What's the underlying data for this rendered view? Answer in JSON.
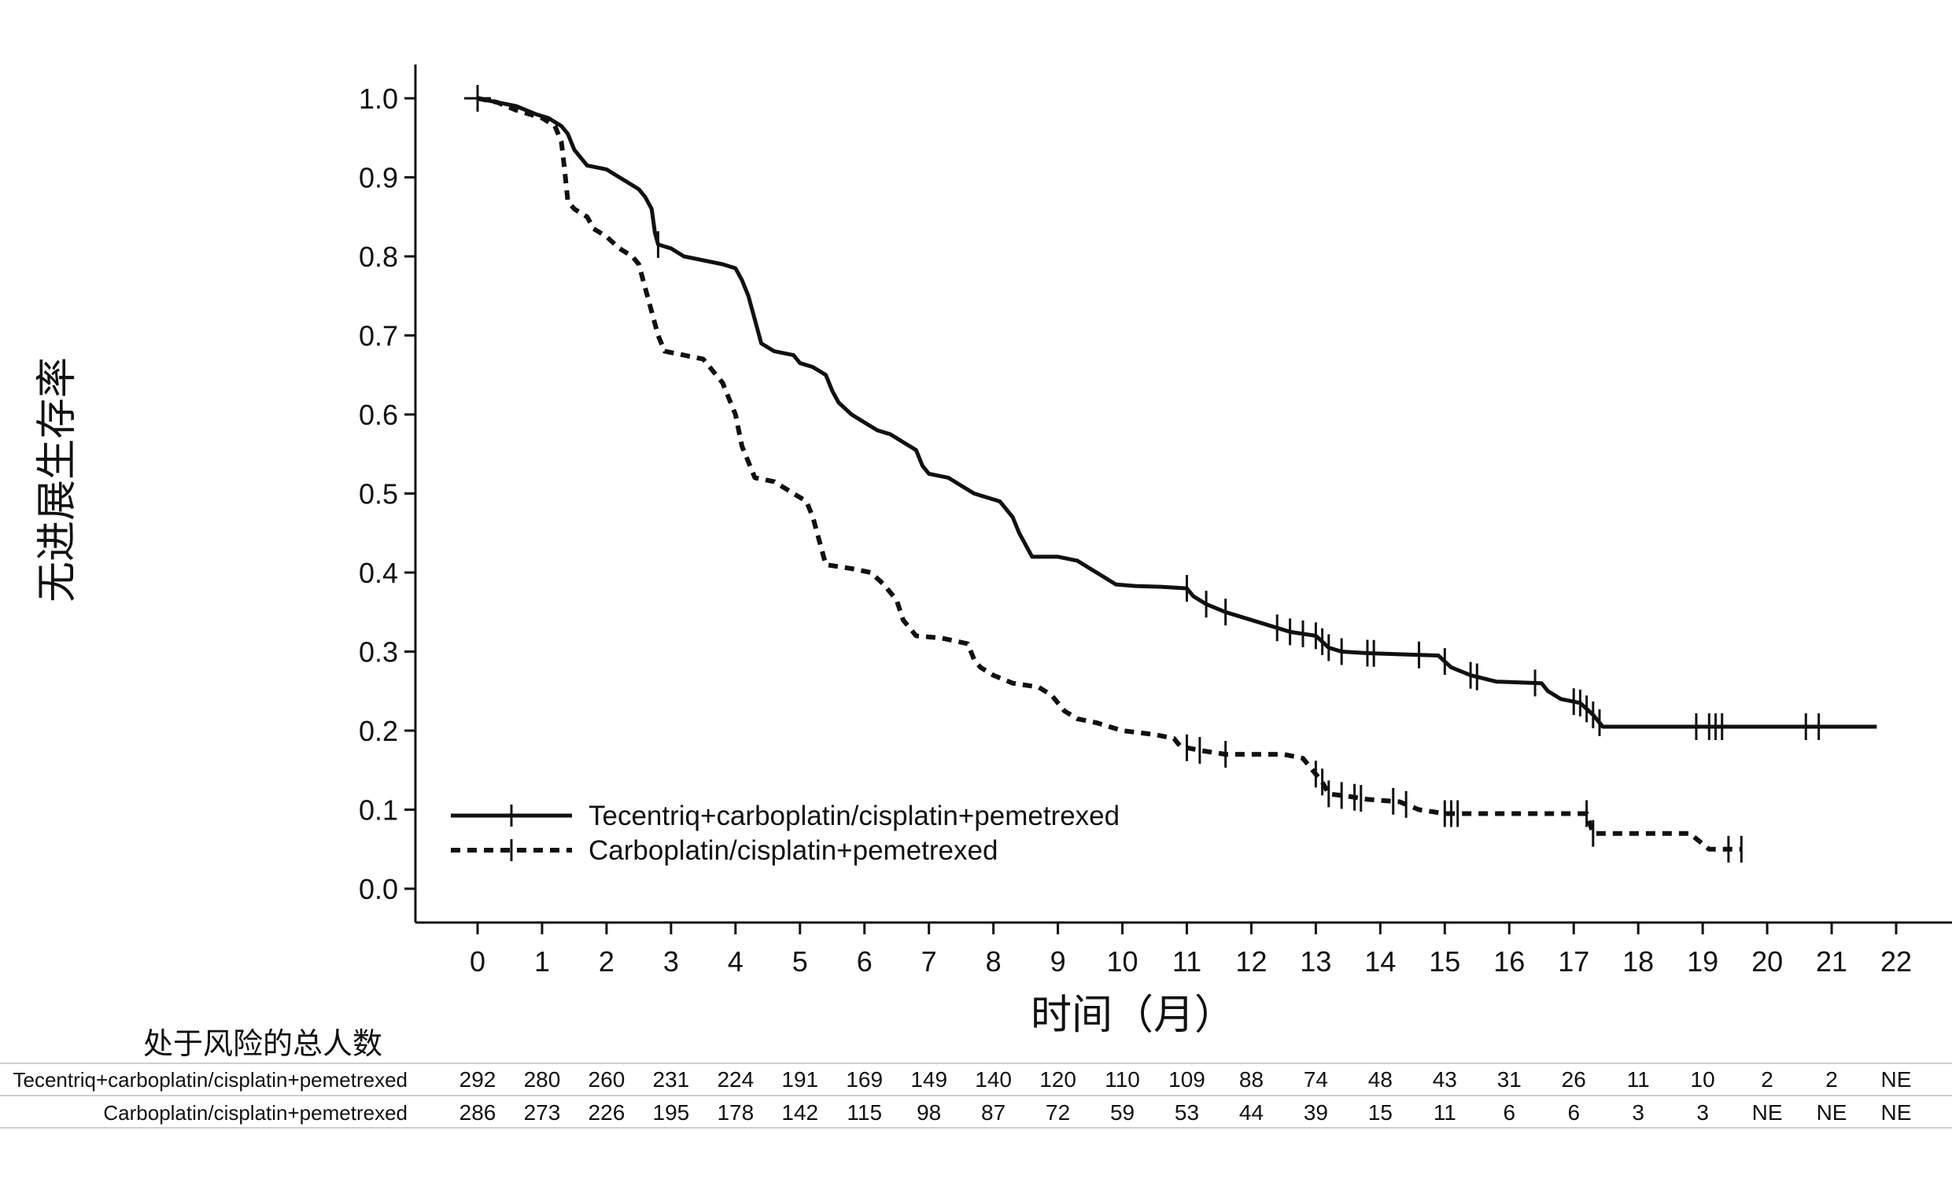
{
  "chart_data": {
    "type": "line",
    "title": "",
    "xlabel": "时间（月）",
    "ylabel": "无进展生存率",
    "xlim": [
      0,
      22
    ],
    "ylim": [
      0,
      1
    ],
    "x_ticks": [
      0,
      1,
      2,
      3,
      4,
      5,
      6,
      7,
      8,
      9,
      10,
      11,
      12,
      13,
      14,
      15,
      16,
      17,
      18,
      19,
      20,
      21,
      22
    ],
    "y_ticks": [
      "0.0",
      "0.1",
      "0.2",
      "0.3",
      "0.4",
      "0.5",
      "0.6",
      "0.7",
      "0.8",
      "0.9",
      "1.0"
    ],
    "grid": false,
    "legend_position": "bottom-left",
    "series": [
      {
        "name": "Tecentriq+carboplatin/cisplatin+pemetrexed",
        "style": "solid",
        "color": "#111111",
        "points": [
          [
            0,
            1.0
          ],
          [
            0.3,
            0.995
          ],
          [
            0.6,
            0.99
          ],
          [
            0.9,
            0.98
          ],
          [
            1.1,
            0.975
          ],
          [
            1.3,
            0.965
          ],
          [
            1.4,
            0.955
          ],
          [
            1.5,
            0.935
          ],
          [
            1.6,
            0.925
          ],
          [
            1.7,
            0.915
          ],
          [
            2.0,
            0.91
          ],
          [
            2.2,
            0.9
          ],
          [
            2.4,
            0.89
          ],
          [
            2.5,
            0.885
          ],
          [
            2.6,
            0.875
          ],
          [
            2.7,
            0.86
          ],
          [
            2.75,
            0.83
          ],
          [
            2.8,
            0.815
          ],
          [
            3.0,
            0.81
          ],
          [
            3.2,
            0.8
          ],
          [
            3.5,
            0.795
          ],
          [
            3.8,
            0.79
          ],
          [
            4.0,
            0.785
          ],
          [
            4.1,
            0.77
          ],
          [
            4.2,
            0.75
          ],
          [
            4.3,
            0.72
          ],
          [
            4.4,
            0.69
          ],
          [
            4.6,
            0.68
          ],
          [
            4.9,
            0.675
          ],
          [
            5.0,
            0.665
          ],
          [
            5.2,
            0.66
          ],
          [
            5.4,
            0.65
          ],
          [
            5.5,
            0.63
          ],
          [
            5.6,
            0.615
          ],
          [
            5.8,
            0.6
          ],
          [
            6.0,
            0.59
          ],
          [
            6.2,
            0.58
          ],
          [
            6.4,
            0.575
          ],
          [
            6.6,
            0.565
          ],
          [
            6.8,
            0.555
          ],
          [
            6.9,
            0.535
          ],
          [
            7.0,
            0.525
          ],
          [
            7.3,
            0.52
          ],
          [
            7.5,
            0.51
          ],
          [
            7.7,
            0.5
          ],
          [
            7.9,
            0.495
          ],
          [
            8.1,
            0.49
          ],
          [
            8.3,
            0.47
          ],
          [
            8.4,
            0.45
          ],
          [
            8.5,
            0.435
          ],
          [
            8.6,
            0.42
          ],
          [
            9.0,
            0.42
          ],
          [
            9.3,
            0.415
          ],
          [
            9.5,
            0.405
          ],
          [
            9.7,
            0.395
          ],
          [
            9.9,
            0.385
          ],
          [
            10.2,
            0.383
          ],
          [
            10.6,
            0.382
          ],
          [
            11.0,
            0.38
          ],
          [
            11.1,
            0.37
          ],
          [
            11.3,
            0.36
          ],
          [
            11.6,
            0.35
          ],
          [
            11.8,
            0.345
          ],
          [
            12.2,
            0.335
          ],
          [
            12.6,
            0.325
          ],
          [
            13.0,
            0.32
          ],
          [
            13.2,
            0.305
          ],
          [
            13.4,
            0.3
          ],
          [
            13.8,
            0.298
          ],
          [
            14.9,
            0.295
          ],
          [
            15.1,
            0.28
          ],
          [
            15.4,
            0.27
          ],
          [
            15.8,
            0.262
          ],
          [
            16.5,
            0.26
          ],
          [
            16.6,
            0.25
          ],
          [
            16.8,
            0.24
          ],
          [
            17.1,
            0.235
          ],
          [
            17.3,
            0.22
          ],
          [
            17.4,
            0.21
          ],
          [
            17.45,
            0.205
          ],
          [
            20.0,
            0.205
          ],
          [
            21.7,
            0.205
          ]
        ],
        "censor_x": [
          0,
          2.8,
          11.0,
          11.3,
          11.6,
          12.4,
          12.6,
          12.8,
          13.0,
          13.1,
          13.2,
          13.4,
          13.8,
          13.9,
          14.6,
          15.0,
          15.4,
          15.5,
          16.4,
          17.0,
          17.1,
          17.2,
          17.3,
          17.4,
          18.9,
          19.1,
          19.2,
          19.3,
          20.6,
          20.8
        ]
      },
      {
        "name": "Carboplatin/cisplatin+pemetrexed",
        "style": "dashed",
        "color": "#111111",
        "points": [
          [
            0,
            1.0
          ],
          [
            0.3,
            0.995
          ],
          [
            0.6,
            0.985
          ],
          [
            1.0,
            0.975
          ],
          [
            1.2,
            0.965
          ],
          [
            1.3,
            0.945
          ],
          [
            1.35,
            0.91
          ],
          [
            1.4,
            0.87
          ],
          [
            1.5,
            0.86
          ],
          [
            1.7,
            0.85
          ],
          [
            1.8,
            0.835
          ],
          [
            2.0,
            0.825
          ],
          [
            2.2,
            0.81
          ],
          [
            2.4,
            0.8
          ],
          [
            2.5,
            0.79
          ],
          [
            2.6,
            0.76
          ],
          [
            2.7,
            0.73
          ],
          [
            2.8,
            0.7
          ],
          [
            2.9,
            0.68
          ],
          [
            3.2,
            0.675
          ],
          [
            3.5,
            0.67
          ],
          [
            3.8,
            0.64
          ],
          [
            4.0,
            0.6
          ],
          [
            4.1,
            0.56
          ],
          [
            4.2,
            0.54
          ],
          [
            4.3,
            0.52
          ],
          [
            4.6,
            0.515
          ],
          [
            4.9,
            0.5
          ],
          [
            5.1,
            0.49
          ],
          [
            5.2,
            0.47
          ],
          [
            5.3,
            0.44
          ],
          [
            5.4,
            0.41
          ],
          [
            5.8,
            0.405
          ],
          [
            6.1,
            0.4
          ],
          [
            6.3,
            0.385
          ],
          [
            6.5,
            0.365
          ],
          [
            6.6,
            0.34
          ],
          [
            6.8,
            0.32
          ],
          [
            7.2,
            0.317
          ],
          [
            7.6,
            0.31
          ],
          [
            7.7,
            0.29
          ],
          [
            7.8,
            0.28
          ],
          [
            8.0,
            0.27
          ],
          [
            8.3,
            0.26
          ],
          [
            8.7,
            0.255
          ],
          [
            8.9,
            0.245
          ],
          [
            9.0,
            0.235
          ],
          [
            9.1,
            0.225
          ],
          [
            9.3,
            0.215
          ],
          [
            9.6,
            0.21
          ],
          [
            10.0,
            0.2
          ],
          [
            10.5,
            0.195
          ],
          [
            10.8,
            0.19
          ],
          [
            10.9,
            0.18
          ],
          [
            11.2,
            0.175
          ],
          [
            11.6,
            0.17
          ],
          [
            12.5,
            0.17
          ],
          [
            12.8,
            0.165
          ],
          [
            12.9,
            0.155
          ],
          [
            13.0,
            0.145
          ],
          [
            13.1,
            0.135
          ],
          [
            13.2,
            0.12
          ],
          [
            13.5,
            0.117
          ],
          [
            13.8,
            0.113
          ],
          [
            14.3,
            0.11
          ],
          [
            14.6,
            0.1
          ],
          [
            15.0,
            0.095
          ],
          [
            16.2,
            0.095
          ],
          [
            17.2,
            0.095
          ],
          [
            17.3,
            0.07
          ],
          [
            18.8,
            0.07
          ],
          [
            19.1,
            0.05
          ],
          [
            19.6,
            0.05
          ]
        ],
        "censor_x": [
          0,
          11.0,
          11.2,
          11.6,
          13.0,
          13.1,
          13.2,
          13.4,
          13.6,
          13.7,
          14.2,
          14.4,
          15.0,
          15.1,
          15.2,
          17.2,
          17.3,
          19.4,
          19.6
        ]
      }
    ]
  },
  "risk_table": {
    "title": "处于风险的总人数",
    "times": [
      0,
      1,
      2,
      3,
      4,
      5,
      6,
      7,
      8,
      9,
      10,
      11,
      12,
      13,
      14,
      15,
      16,
      17,
      18,
      19,
      20,
      21,
      22
    ],
    "rows": [
      {
        "label": "Tecentriq+carboplatin/cisplatin+pemetrexed",
        "values": [
          "292",
          "280",
          "260",
          "231",
          "224",
          "191",
          "169",
          "149",
          "140",
          "120",
          "110",
          "109",
          "88",
          "74",
          "48",
          "43",
          "31",
          "26",
          "11",
          "10",
          "2",
          "2",
          "NE"
        ]
      },
      {
        "label": "Carboplatin/cisplatin+pemetrexed",
        "values": [
          "286",
          "273",
          "226",
          "195",
          "178",
          "142",
          "115",
          "98",
          "87",
          "72",
          "59",
          "53",
          "44",
          "39",
          "15",
          "11",
          "6",
          "6",
          "3",
          "3",
          "NE",
          "NE",
          "NE"
        ]
      }
    ]
  }
}
